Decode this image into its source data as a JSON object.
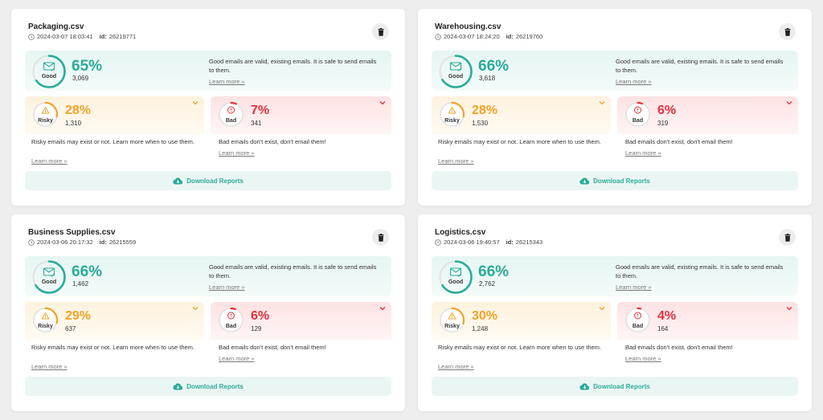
{
  "colors": {
    "good": "#2bab99",
    "risky": "#f0a32a",
    "bad": "#e5303c",
    "track": "#e3e3e3"
  },
  "labels": {
    "good_label": "Good",
    "risky_label": "Risky",
    "bad_label": "Bad",
    "good_desc": "Good emails are valid, existing emails. It is safe to send emails to them.",
    "risky_desc": "Risky emails may exist or not. Learn more when to use them.",
    "bad_desc": "Bad emails don't exist, don't email them!",
    "learn_more": "Learn more »",
    "download": "Download Reports",
    "id_label": "id:"
  },
  "icons": {
    "clock": "clock-icon",
    "delete": "trash-icon",
    "good": "envelope-check-icon",
    "risky": "warning-icon",
    "bad": "error-circle-icon",
    "chevron": "chevron-down-icon",
    "download": "cloud-download-icon"
  },
  "cards": [
    {
      "filename": "Packaging.csv",
      "datetime": "2024-03-07 18:03:41",
      "id": "26219771",
      "good": {
        "pct": "65%",
        "value": 0.65,
        "count": "3,069"
      },
      "risky": {
        "pct": "28%",
        "value": 0.28,
        "count": "1,310"
      },
      "bad": {
        "pct": "7%",
        "value": 0.07,
        "count": "341"
      }
    },
    {
      "filename": "Warehousing.csv",
      "datetime": "2024-03-07 18:24:20",
      "id": "26219760",
      "good": {
        "pct": "66%",
        "value": 0.66,
        "count": "3,618"
      },
      "risky": {
        "pct": "28%",
        "value": 0.28,
        "count": "1,530"
      },
      "bad": {
        "pct": "6%",
        "value": 0.06,
        "count": "319"
      }
    },
    {
      "filename": "Business Supplies.csv",
      "datetime": "2024-03-06 20:17:32",
      "id": "26215559",
      "good": {
        "pct": "66%",
        "value": 0.66,
        "count": "1,462"
      },
      "risky": {
        "pct": "29%",
        "value": 0.29,
        "count": "637"
      },
      "bad": {
        "pct": "6%",
        "value": 0.06,
        "count": "129"
      }
    },
    {
      "filename": "Logistics.csv",
      "datetime": "2024-03-06 19:40:57",
      "id": "26215343",
      "good": {
        "pct": "66%",
        "value": 0.66,
        "count": "2,762"
      },
      "risky": {
        "pct": "30%",
        "value": 0.3,
        "count": "1,248"
      },
      "bad": {
        "pct": "4%",
        "value": 0.04,
        "count": "164"
      }
    }
  ]
}
